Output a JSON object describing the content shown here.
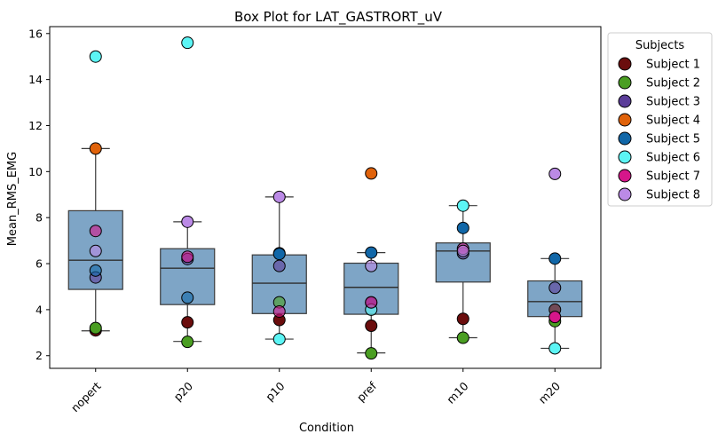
{
  "chart_data": {
    "type": "box",
    "title": "Box Plot for LAT_GASTRORT_uV",
    "xlabel": "Condition",
    "ylabel": "Mean_RMS_EMG",
    "ylim": [
      1.45,
      16.3
    ],
    "yticks": [
      2,
      4,
      6,
      8,
      10,
      12,
      14,
      16
    ],
    "categories": [
      "nopert",
      "p20",
      "p10",
      "pref",
      "m10",
      "m20"
    ],
    "boxes": [
      {
        "category": "nopert",
        "whisker_low": 3.08,
        "q1": 4.88,
        "median": 6.15,
        "q3": 8.3,
        "whisker_high": 11.0
      },
      {
        "category": "p20",
        "whisker_low": 2.62,
        "q1": 4.22,
        "median": 5.8,
        "q3": 6.65,
        "whisker_high": 7.82
      },
      {
        "category": "p10",
        "whisker_low": 2.72,
        "q1": 3.83,
        "median": 5.15,
        "q3": 6.38,
        "whisker_high": 8.9
      },
      {
        "category": "pref",
        "whisker_low": 2.12,
        "q1": 3.8,
        "median": 4.97,
        "q3": 6.02,
        "whisker_high": 6.48
      },
      {
        "category": "m10",
        "whisker_low": 2.78,
        "q1": 5.2,
        "median": 6.55,
        "q3": 6.9,
        "whisker_high": 8.52
      },
      {
        "category": "m20",
        "whisker_low": 2.32,
        "q1": 3.7,
        "median": 4.35,
        "q3": 5.25,
        "whisker_high": 6.22
      }
    ],
    "legend_title": "Subjects",
    "legend_placement": "outside-right",
    "series": [
      {
        "name": "Subject 1",
        "color": "#6b0d0d",
        "values": [
          3.1,
          3.45,
          3.55,
          3.3,
          3.6,
          4.0
        ]
      },
      {
        "name": "Subject 2",
        "color": "#4a9e22",
        "values": [
          3.2,
          2.6,
          4.32,
          2.1,
          2.78,
          3.5
        ]
      },
      {
        "name": "Subject 3",
        "color": "#5b3d99",
        "values": [
          5.4,
          6.2,
          5.9,
          4.3,
          6.45,
          4.95
        ]
      },
      {
        "name": "Subject 4",
        "color": "#e0620a",
        "values": [
          11.0,
          null,
          6.45,
          9.92,
          null,
          null
        ]
      },
      {
        "name": "Subject 5",
        "color": "#1167a8",
        "values": [
          5.7,
          4.52,
          6.42,
          6.48,
          7.55,
          6.22
        ]
      },
      {
        "name": "Subject 6",
        "color": "#5cf5f5",
        "values": [
          15.0,
          15.6,
          2.72,
          4.0,
          8.52,
          2.32
        ]
      },
      {
        "name": "Subject 7",
        "color": "#d6168a",
        "values": [
          7.42,
          6.3,
          3.92,
          4.32,
          6.65,
          3.68
        ]
      },
      {
        "name": "Subject 8",
        "color": "#bb8ae6",
        "values": [
          6.55,
          7.82,
          8.9,
          5.9,
          6.55,
          9.9
        ]
      }
    ]
  }
}
